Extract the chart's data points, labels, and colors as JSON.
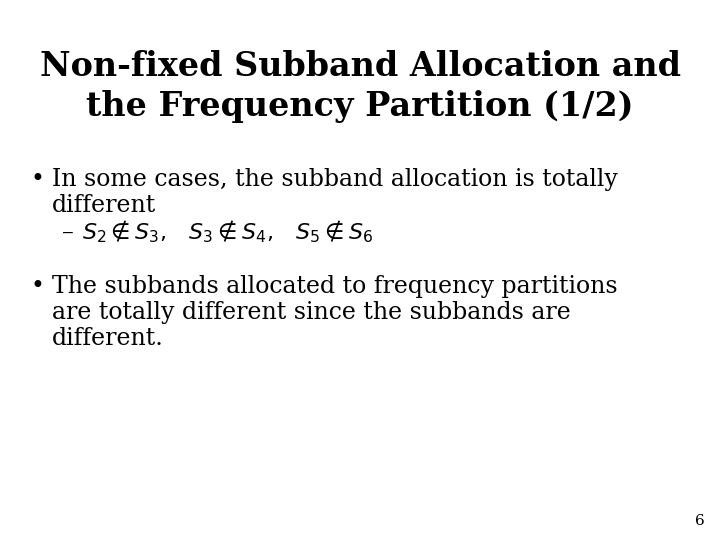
{
  "title_line1": "Non-fixed Subband Allocation and",
  "title_line2": "the Frequency Partition (1/2)",
  "bullet1_line1": "In some cases, the subband allocation is totally",
  "bullet1_line2": "different",
  "bullet1_math": "$S_2 \\notin S_3,\\;\\;\\; S_3 \\notin S_4,\\;\\;\\; S_5 \\notin S_6$",
  "bullet2_line1": "The subbands allocated to frequency partitions",
  "bullet2_line2": "are totally different since the subbands are",
  "bullet2_line3": "different.",
  "page_number": "6",
  "bg_color": "#ffffff",
  "text_color": "#000000",
  "title_fontsize": 24,
  "body_fontsize": 17,
  "math_fontsize": 16,
  "page_fontsize": 11
}
